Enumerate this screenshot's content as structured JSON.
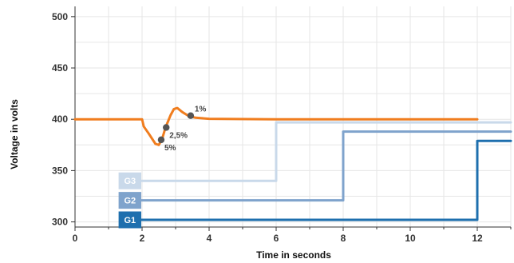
{
  "chart_data": {
    "type": "line",
    "title": "",
    "xlabel": "Time in seconds",
    "ylabel": "Voltage in volts",
    "xlim": [
      0,
      13
    ],
    "ylim": [
      295,
      510
    ],
    "grid": true,
    "x_ticks": [
      0,
      2,
      4,
      6,
      8,
      10,
      12
    ],
    "y_ticks": [
      300,
      350,
      400,
      450,
      500
    ],
    "x_tick_labels": [
      "0",
      "2",
      "4",
      "6",
      "8",
      "10",
      "12"
    ],
    "y_tick_labels": [
      "300",
      "350",
      "400",
      "450",
      "500"
    ],
    "series": [
      {
        "name": "",
        "color": "#f07d1e",
        "points": [
          [
            0,
            400
          ],
          [
            2.0,
            400
          ],
          [
            2.05,
            393
          ],
          [
            2.2,
            386
          ],
          [
            2.4,
            376
          ],
          [
            2.5,
            375
          ],
          [
            2.6,
            381
          ],
          [
            2.7,
            392
          ],
          [
            2.85,
            404
          ],
          [
            2.95,
            410
          ],
          [
            3.05,
            411
          ],
          [
            3.2,
            407
          ],
          [
            3.4,
            403
          ],
          [
            3.6,
            401.5
          ],
          [
            4.0,
            400.5
          ],
          [
            6,
            400
          ],
          [
            12,
            400
          ]
        ]
      },
      {
        "name": "G3",
        "color": "#c9d9ea",
        "points": [
          [
            1.5,
            340
          ],
          [
            6,
            340
          ],
          [
            6,
            397
          ],
          [
            13,
            397
          ]
        ]
      },
      {
        "name": "G2",
        "color": "#7fa3cc",
        "points": [
          [
            1.5,
            321
          ],
          [
            8,
            321
          ],
          [
            8,
            388
          ],
          [
            13,
            388
          ]
        ]
      },
      {
        "name": "G1",
        "color": "#1e6fae",
        "points": [
          [
            1.5,
            302
          ],
          [
            12,
            302
          ],
          [
            12,
            379
          ],
          [
            13,
            379
          ]
        ]
      }
    ],
    "annotations": [
      {
        "label": "1%",
        "x": 3.45,
        "y": 403.5
      },
      {
        "label": "2,5%",
        "x": 2.72,
        "y": 392
      },
      {
        "label": "5%",
        "x": 2.57,
        "y": 380
      }
    ],
    "generator_labels": [
      {
        "label": "G3",
        "color": "#c9d9ea",
        "y": 340
      },
      {
        "label": "G2",
        "color": "#7fa3cc",
        "y": 321
      },
      {
        "label": "G1",
        "color": "#1e6fae",
        "y": 302
      }
    ],
    "gridline_color": "#e6e6e6",
    "axis_color": "#333333",
    "marker_color": "#555555"
  }
}
